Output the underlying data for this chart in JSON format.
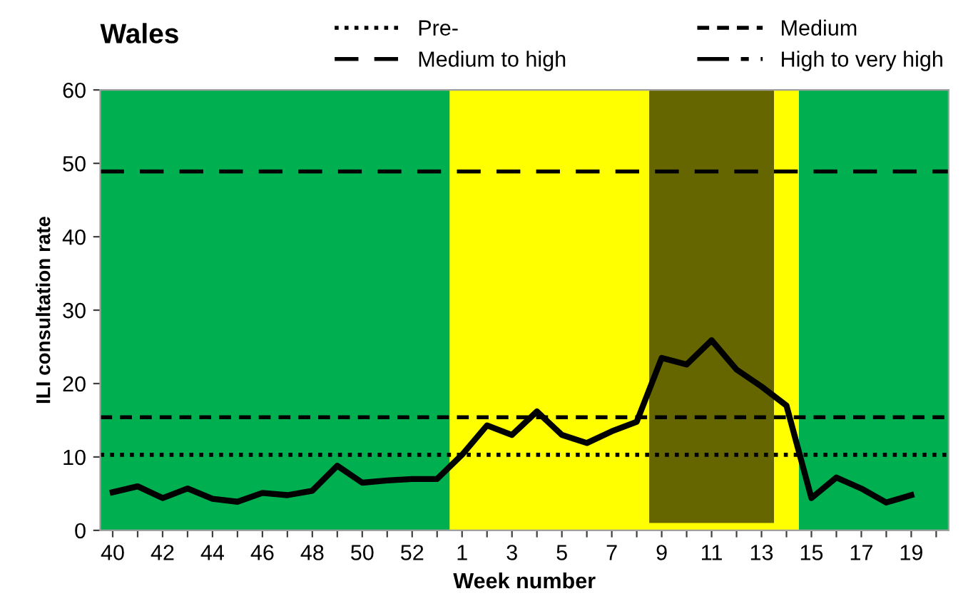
{
  "chart_data": {
    "type": "line",
    "title": "Wales",
    "xlabel": "Week number",
    "ylabel": "ILI consultation rate",
    "categories": [
      "40",
      null,
      "42",
      null,
      "44",
      null,
      "46",
      null,
      "48",
      null,
      "50",
      null,
      "52",
      null,
      "1",
      null,
      "3",
      null,
      "5",
      null,
      "7",
      null,
      "9",
      null,
      "11",
      null,
      "13",
      null,
      "15",
      null,
      "17",
      null,
      "19",
      null
    ],
    "series": [
      {
        "color": "#000000",
        "values": [
          5.2,
          6.0,
          4.4,
          5.7,
          4.3,
          3.9,
          5.1,
          4.8,
          5.4,
          8.8,
          6.5,
          6.8,
          7.0,
          7.0,
          10.3,
          14.3,
          13.0,
          16.2,
          13.0,
          11.9,
          13.5,
          14.8,
          23.5,
          22.6,
          25.9,
          21.9,
          19.6,
          17.0,
          4.4,
          7.2,
          5.7,
          3.8,
          4.8,
          null
        ]
      }
    ],
    "ylim": [
      0,
      60
    ],
    "yticks": [
      0,
      10,
      20,
      30,
      40,
      50,
      60
    ],
    "grid": false,
    "marker": "none",
    "line_style": "solid",
    "legend": "top",
    "ref_lines": [
      {
        "axis": "y",
        "value": 10.3,
        "label": "Pre-",
        "line_style": "dotted",
        "color": "#000000"
      },
      {
        "axis": "y",
        "value": 15.4,
        "label": "Medium",
        "line_style": "dashed",
        "color": "#000000"
      },
      {
        "axis": "y",
        "value": 48.9,
        "label": "Medium to high",
        "line_style": "longdash",
        "color": "#000000"
      }
    ],
    "annotations": [
      "High to very high"
    ],
    "bands": [
      {
        "axis": "x",
        "from": "1",
        "to": "15",
        "color": "#ffff00"
      }
    ]
  }
}
